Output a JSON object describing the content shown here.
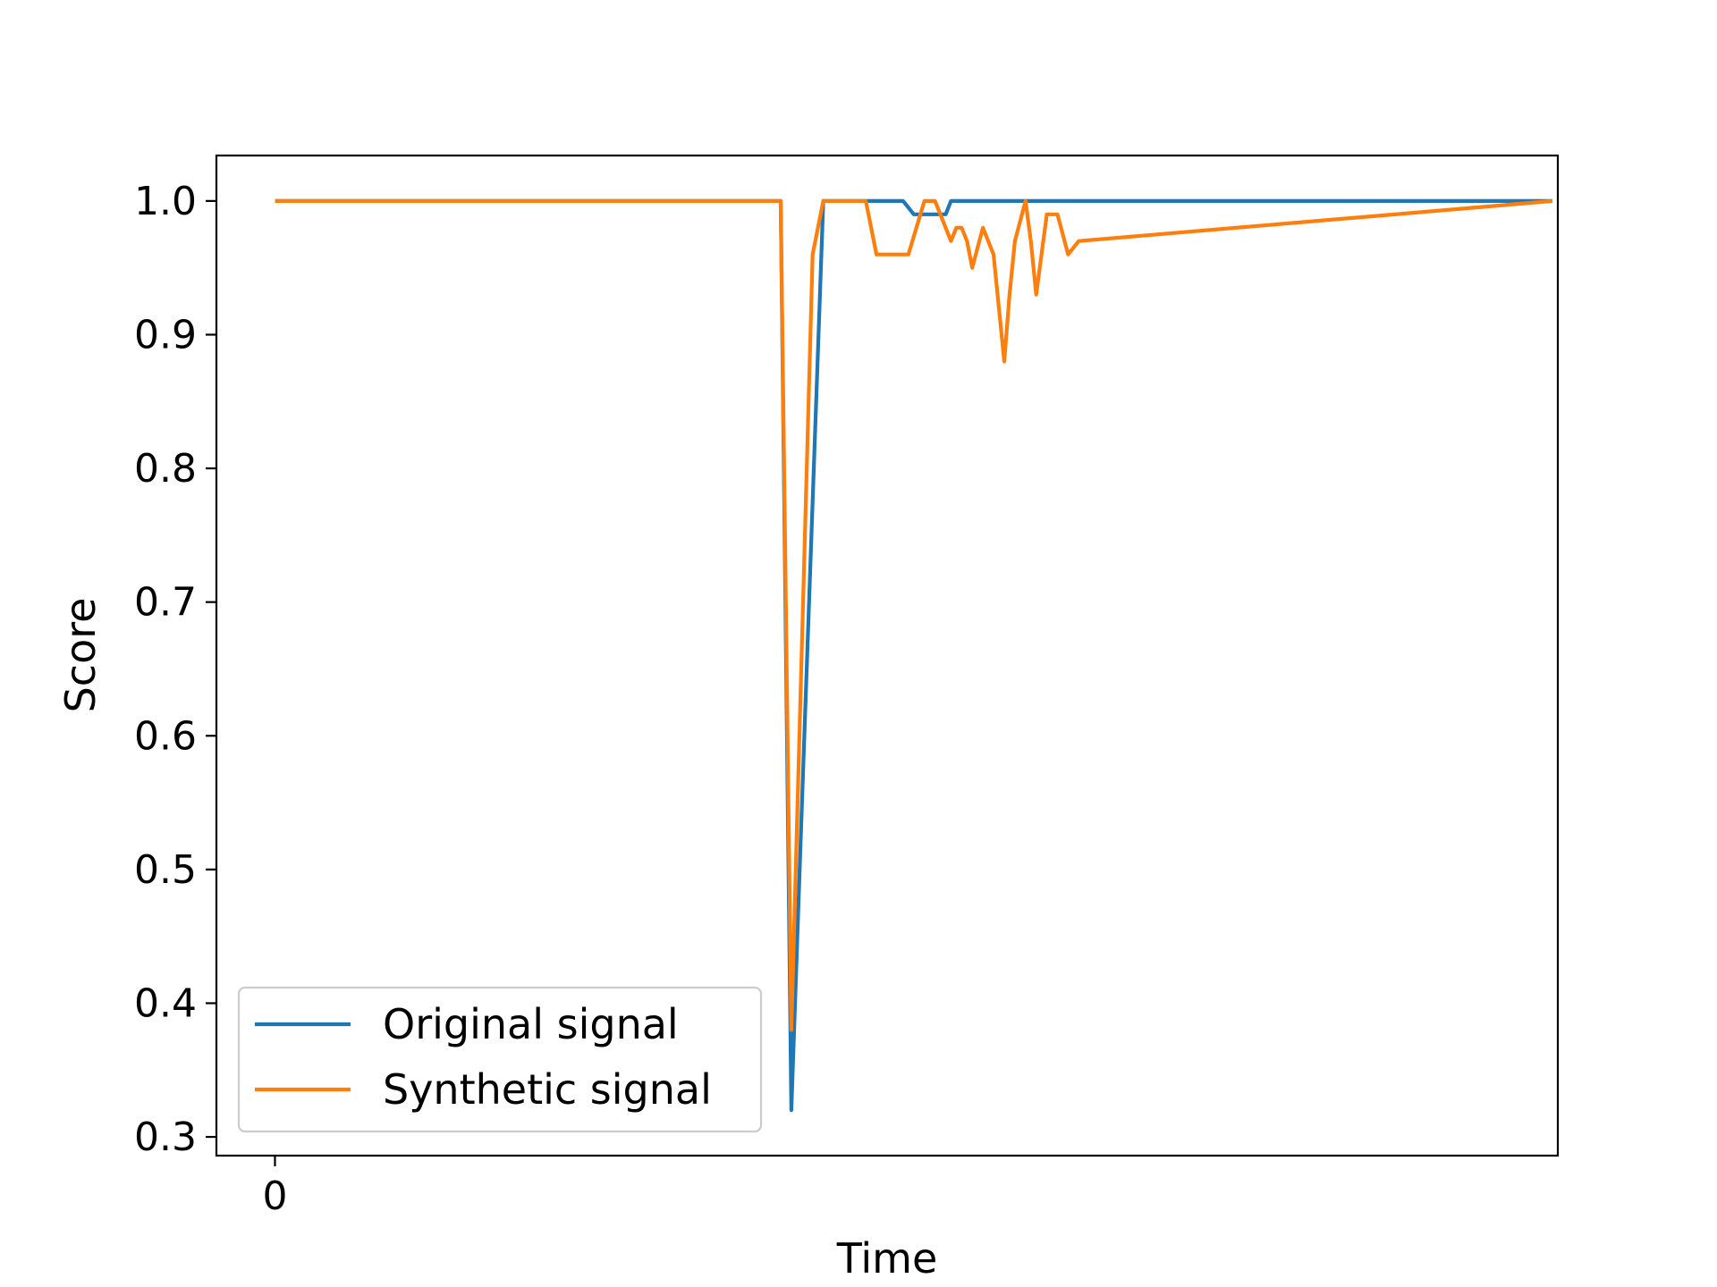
{
  "chart_data": {
    "type": "line",
    "title": "",
    "xlabel": "Time",
    "ylabel": "Score",
    "xlim": [
      -11,
      241
    ],
    "ylim": [
      0.286,
      1.034
    ],
    "x_ticks": [
      0
    ],
    "x_tick_labels": [
      "0"
    ],
    "y_ticks": [
      0.3,
      0.4,
      0.5,
      0.6,
      0.7,
      0.8,
      0.9,
      1.0
    ],
    "y_tick_labels": [
      "0.3",
      "0.4",
      "0.5",
      "0.6",
      "0.7",
      "0.8",
      "0.9",
      "1.0"
    ],
    "grid": false,
    "legend_position": "lower-left",
    "series": [
      {
        "name": "Original signal",
        "color": "#1f77b4",
        "x": [
          0,
          95,
          97,
          99,
          103,
          118,
          120,
          122,
          124,
          126,
          127,
          151,
          240
        ],
        "y": [
          1.0,
          1.0,
          0.32,
          0.55,
          1.0,
          1.0,
          0.99,
          0.99,
          0.99,
          0.99,
          1.0,
          1.0,
          1.0
        ]
      },
      {
        "name": "Synthetic signal",
        "color": "#ff7f0e",
        "x": [
          0,
          95,
          97,
          101,
          103,
          111,
          113,
          117,
          119,
          122,
          124,
          125,
          127,
          128,
          129,
          130,
          131,
          133,
          135,
          136,
          137,
          138,
          139,
          141,
          142,
          143,
          145,
          147,
          149,
          151,
          240
        ],
        "y": [
          1.0,
          1.0,
          0.38,
          0.96,
          1.0,
          1.0,
          0.96,
          0.96,
          0.96,
          1.0,
          1.0,
          0.99,
          0.97,
          0.98,
          0.98,
          0.97,
          0.95,
          0.98,
          0.96,
          0.92,
          0.88,
          0.93,
          0.97,
          1.0,
          0.97,
          0.93,
          0.99,
          0.99,
          0.96,
          0.97,
          1.0
        ]
      }
    ]
  }
}
